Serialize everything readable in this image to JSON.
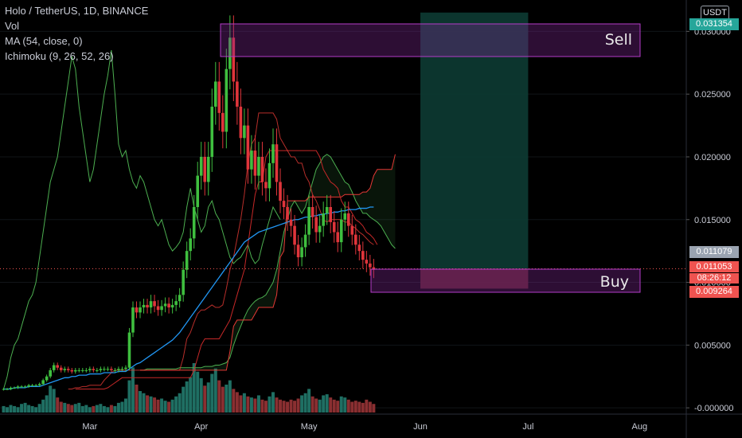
{
  "legend": {
    "title": "Holo / TetherUS, 1D, BINANCE",
    "vol": "Vol",
    "ma": "MA (54, close, 0)",
    "ichimoku": "Ichimoku (9, 26, 52, 26)"
  },
  "currency": "USDT",
  "colors": {
    "up": "#26a69a",
    "down": "#ef5350",
    "green_candle": "#3fbf3f",
    "red_candle": "#e0353b",
    "ma": "#2196f3",
    "ichimoku_lead": "#4caf50",
    "ichimoku_red": "#e53935",
    "sell_zone": "#b43cc8",
    "buy_zone": "#b43cc8",
    "projection": "#0d3b33"
  },
  "price_badges": [
    {
      "value": "0.031354",
      "color": "#26a69a"
    },
    {
      "value": "0.011079",
      "color": "#9aa3b0"
    },
    {
      "value": "0.011053",
      "color": "#ef5350"
    },
    {
      "value": "08:26:12",
      "color": "#ef5350"
    },
    {
      "value": "0.009264",
      "color": "#ef5350"
    }
  ],
  "chart_data": {
    "type": "candlestick",
    "title": "Holo / TetherUS, 1D, BINANCE",
    "ylim": [
      -0.0005,
      0.0325
    ],
    "y_ticks": [
      "0.030000",
      "0.025000",
      "0.020000",
      "0.015000",
      "0.010000",
      "0.005000",
      "-0.000000"
    ],
    "y_tick_values": [
      0.03,
      0.025,
      0.02,
      0.015,
      0.01,
      0.005,
      0.0
    ],
    "x_ticks": [
      "Mar",
      "Apr",
      "May",
      "Jun",
      "Jul",
      "Aug"
    ],
    "x_tick_days": [
      24,
      55,
      85,
      116,
      146,
      177
    ],
    "xlim": [
      -1,
      190
    ],
    "sell_zone": {
      "label": "Sell",
      "price_range": [
        0.0285,
        0.0315
      ],
      "day_range": [
        61,
        185
      ]
    },
    "buy_zone": {
      "label": "Buy",
      "price_range": [
        0.0085,
        0.0098
      ],
      "day_range": [
        104,
        185
      ]
    },
    "projection_box": {
      "price_range": [
        0.0095,
        0.0315
      ],
      "day_range": [
        116,
        146
      ]
    },
    "target_line": {
      "price": 0.011079
    },
    "close_series": [
      0.0015,
      0.0015,
      0.0016,
      0.0016,
      0.0017,
      0.0017,
      0.0017,
      0.0018,
      0.0018,
      0.0018,
      0.0019,
      0.0022,
      0.0025,
      0.003,
      0.0034,
      0.0032,
      0.003,
      0.0031,
      0.003,
      0.0029,
      0.003,
      0.003,
      0.003,
      0.003,
      0.0031,
      0.003,
      0.003,
      0.0031,
      0.0031,
      0.0031,
      0.003,
      0.003,
      0.0031,
      0.0031,
      0.0032,
      0.006,
      0.008,
      0.0076,
      0.008,
      0.0082,
      0.008,
      0.0085,
      0.0081,
      0.0078,
      0.0081,
      0.0083,
      0.008,
      0.0082,
      0.0085,
      0.009,
      0.011,
      0.0125,
      0.0135,
      0.016,
      0.0185,
      0.02,
      0.018,
      0.02,
      0.024,
      0.026,
      0.0235,
      0.022,
      0.027,
      0.0295,
      0.026,
      0.024,
      0.0215,
      0.0225,
      0.019,
      0.0205,
      0.0185,
      0.02,
      0.018,
      0.0175,
      0.0195,
      0.021,
      0.018,
      0.0165,
      0.016,
      0.015,
      0.0145,
      0.013,
      0.012,
      0.0128,
      0.0138,
      0.016,
      0.0152,
      0.014,
      0.0145,
      0.0155,
      0.016,
      0.0148,
      0.014,
      0.0132,
      0.015,
      0.0155,
      0.0145,
      0.0138,
      0.013,
      0.0125,
      0.0118,
      0.0115,
      0.0112,
      0.011
    ],
    "ma_series": [
      0.0015,
      0.0015,
      0.0015,
      0.0016,
      0.0016,
      0.0016,
      0.0016,
      0.0017,
      0.0017,
      0.0017,
      0.0017,
      0.0018,
      0.0019,
      0.002,
      0.0021,
      0.0022,
      0.0023,
      0.0024,
      0.0024,
      0.0025,
      0.0025,
      0.0026,
      0.0026,
      0.0026,
      0.0027,
      0.0027,
      0.0027,
      0.0027,
      0.0028,
      0.0028,
      0.0028,
      0.0028,
      0.0029,
      0.0029,
      0.0029,
      0.0031,
      0.0033,
      0.0035,
      0.0036,
      0.0038,
      0.004,
      0.0042,
      0.0044,
      0.0046,
      0.0048,
      0.005,
      0.0052,
      0.0054,
      0.0057,
      0.006,
      0.0064,
      0.0068,
      0.0072,
      0.0076,
      0.008,
      0.0084,
      0.0088,
      0.0092,
      0.0096,
      0.01,
      0.0104,
      0.0108,
      0.0112,
      0.0116,
      0.012,
      0.0124,
      0.0128,
      0.0132,
      0.0134,
      0.0136,
      0.0138,
      0.014,
      0.0141,
      0.0142,
      0.0143,
      0.0144,
      0.0145,
      0.0146,
      0.0147,
      0.0148,
      0.0149,
      0.015,
      0.015,
      0.0151,
      0.0152,
      0.0152,
      0.0153,
      0.0153,
      0.0154,
      0.0154,
      0.0155,
      0.0155,
      0.0156,
      0.0156,
      0.0157,
      0.0157,
      0.0158,
      0.0158,
      0.0158,
      0.0159,
      0.0159,
      0.0159,
      0.016,
      0.016
    ],
    "volume_series": [
      0.6,
      0.5,
      0.7,
      0.6,
      0.5,
      0.8,
      0.9,
      0.7,
      0.6,
      0.5,
      0.8,
      1.2,
      1.6,
      2.5,
      2.2,
      1.4,
      1.0,
      0.9,
      0.8,
      0.7,
      0.8,
      0.9,
      0.6,
      0.7,
      0.5,
      0.6,
      0.7,
      0.8,
      0.6,
      0.5,
      0.7,
      0.6,
      0.9,
      1.0,
      1.3,
      3.0,
      4.2,
      2.6,
      2.0,
      1.8,
      1.6,
      1.5,
      1.4,
      1.2,
      1.3,
      1.1,
      1.0,
      1.2,
      1.5,
      1.8,
      2.4,
      2.9,
      3.3,
      4.6,
      3.8,
      3.2,
      2.5,
      2.8,
      3.6,
      4.1,
      3.0,
      2.4,
      2.6,
      3.0,
      2.2,
      1.9,
      1.6,
      1.8,
      1.5,
      1.4,
      1.3,
      1.6,
      1.2,
      1.1,
      1.5,
      1.9,
      1.4,
      1.2,
      1.1,
      1.0,
      1.2,
      1.1,
      1.3,
      1.6,
      1.8,
      2.2,
      1.5,
      1.3,
      1.2,
      1.6,
      1.7,
      1.4,
      1.2,
      1.1,
      1.5,
      1.4,
      1.2,
      1.0,
      1.1,
      1.0,
      0.9,
      1.2,
      1.0,
      0.8
    ],
    "ichimoku_lagging": [
      0.0015,
      0.0025,
      0.004,
      0.005,
      0.0055,
      0.0065,
      0.0075,
      0.0085,
      0.009,
      0.01,
      0.012,
      0.014,
      0.016,
      0.018,
      0.019,
      0.02,
      0.022,
      0.024,
      0.026,
      0.028,
      0.027,
      0.024,
      0.022,
      0.02,
      0.018,
      0.019,
      0.021,
      0.023,
      0.025,
      0.0265,
      0.0285,
      0.025,
      0.021,
      0.02,
      0.0205,
      0.019,
      0.018,
      0.0175,
      0.0185,
      0.018,
      0.017,
      0.016,
      0.015,
      0.0145,
      0.015,
      0.014,
      0.013,
      0.0125,
      0.0128,
      0.0132,
      0.014,
      0.016,
      0.0175,
      0.016,
      0.015,
      0.014,
      0.0145,
      0.016,
      0.0165,
      0.0155,
      0.015,
      0.014,
      0.013,
      0.012,
      0.0115,
      0.0118,
      0.012,
      0.0125,
      0.013,
      0.012,
      0.0115,
      0.0118,
      0.013,
      0.014,
      0.015,
      0.016,
      0.0155,
      0.015
    ],
    "ichimoku_span_a": [
      0.003,
      0.003,
      0.0031,
      0.0031,
      0.0031,
      0.0031,
      0.0031,
      0.0031,
      0.0031,
      0.0031,
      0.0031,
      0.0032,
      0.0032,
      0.0032,
      0.0032,
      0.0032,
      0.0032,
      0.0032,
      0.0033,
      0.0033,
      0.0033,
      0.0034,
      0.0034,
      0.0035,
      0.0036,
      0.004,
      0.005,
      0.0058,
      0.0065,
      0.0072,
      0.0078,
      0.0082,
      0.0085,
      0.0087,
      0.0088,
      0.009,
      0.0095,
      0.01,
      0.011,
      0.0125,
      0.014,
      0.015,
      0.016,
      0.0165,
      0.016,
      0.0155,
      0.016,
      0.017,
      0.018,
      0.019,
      0.0195,
      0.02,
      0.0202,
      0.02,
      0.0195,
      0.019,
      0.0185,
      0.018,
      0.0178,
      0.0172,
      0.0165,
      0.016,
      0.0155,
      0.0155,
      0.0152,
      0.015,
      0.0148,
      0.0145,
      0.014,
      0.0135,
      0.013,
      0.0127
    ],
    "ichimoku_span_b": [
      0.003,
      0.003,
      0.003,
      0.003,
      0.003,
      0.003,
      0.003,
      0.003,
      0.003,
      0.003,
      0.003,
      0.003,
      0.003,
      0.003,
      0.003,
      0.003,
      0.003,
      0.003,
      0.003,
      0.003,
      0.003,
      0.003,
      0.003,
      0.003,
      0.003,
      0.0045,
      0.0065,
      0.007,
      0.007,
      0.007,
      0.007,
      0.007,
      0.0075,
      0.008,
      0.008,
      0.008,
      0.008,
      0.008,
      0.009,
      0.012,
      0.0125,
      0.0165,
      0.0165,
      0.0165,
      0.0165,
      0.0165,
      0.0165,
      0.0168,
      0.0168,
      0.0168,
      0.0168,
      0.0168,
      0.0168,
      0.0168,
      0.0168,
      0.0168,
      0.0168,
      0.017,
      0.017,
      0.017,
      0.017,
      0.017,
      0.0172,
      0.0172,
      0.0175,
      0.0185,
      0.019,
      0.019,
      0.019,
      0.019,
      0.019,
      0.0202
    ],
    "tenkan_series": [
      0.0015,
      0.0015,
      0.0016,
      0.0016,
      0.0017,
      0.0017,
      0.0018,
      0.0018,
      0.0018,
      0.0018,
      0.0022,
      0.0025,
      0.0028,
      0.003,
      0.003,
      0.003,
      0.003,
      0.003,
      0.003,
      0.003,
      0.003,
      0.003,
      0.003,
      0.003,
      0.003,
      0.003,
      0.003,
      0.003,
      0.003,
      0.003,
      0.003,
      0.003,
      0.004,
      0.0055,
      0.006,
      0.0068,
      0.0075,
      0.0078,
      0.0078,
      0.008,
      0.0082,
      0.008,
      0.008,
      0.0082,
      0.0095,
      0.011,
      0.012,
      0.0135,
      0.015,
      0.017,
      0.0195,
      0.021,
      0.0215,
      0.0235,
      0.0235,
      0.0235,
      0.0235,
      0.0235,
      0.023,
      0.0215,
      0.021,
      0.0205,
      0.02,
      0.02,
      0.0195,
      0.0195,
      0.0185,
      0.018,
      0.017,
      0.0165,
      0.0158,
      0.015,
      0.0148,
      0.015,
      0.015,
      0.015,
      0.015,
      0.0148,
      0.0148,
      0.0145,
      0.0143,
      0.014,
      0.0138,
      0.0135,
      0.0132,
      0.013
    ],
    "kijun_series": [
      0.0015,
      0.0015,
      0.0015,
      0.0015,
      0.0015,
      0.0015,
      0.0015,
      0.0015,
      0.0015,
      0.0016,
      0.0018,
      0.002,
      0.0022,
      0.0024,
      0.0024,
      0.0024,
      0.0024,
      0.0024,
      0.0024,
      0.0024,
      0.0024,
      0.0024,
      0.0024,
      0.0024,
      0.0024,
      0.0024,
      0.0024,
      0.0024,
      0.0024,
      0.0024,
      0.0024,
      0.0024,
      0.0024,
      0.003,
      0.004,
      0.005,
      0.0055,
      0.0055,
      0.0055,
      0.0055,
      0.0055,
      0.006,
      0.0065,
      0.007,
      0.008,
      0.009,
      0.01,
      0.011,
      0.013,
      0.015,
      0.017,
      0.018,
      0.018,
      0.02,
      0.0205,
      0.0205,
      0.0205,
      0.0205,
      0.0205,
      0.0205,
      0.0205,
      0.0205,
      0.0205,
      0.0205,
      0.0205,
      0.0205,
      0.0205,
      0.0205,
      0.02,
      0.019,
      0.0185,
      0.018,
      0.0178,
      0.0175,
      0.0165,
      0.016,
      0.016,
      0.0155,
      0.015,
      0.0148,
      0.0145,
      0.014,
      0.0138,
      0.0135,
      0.013
    ]
  }
}
